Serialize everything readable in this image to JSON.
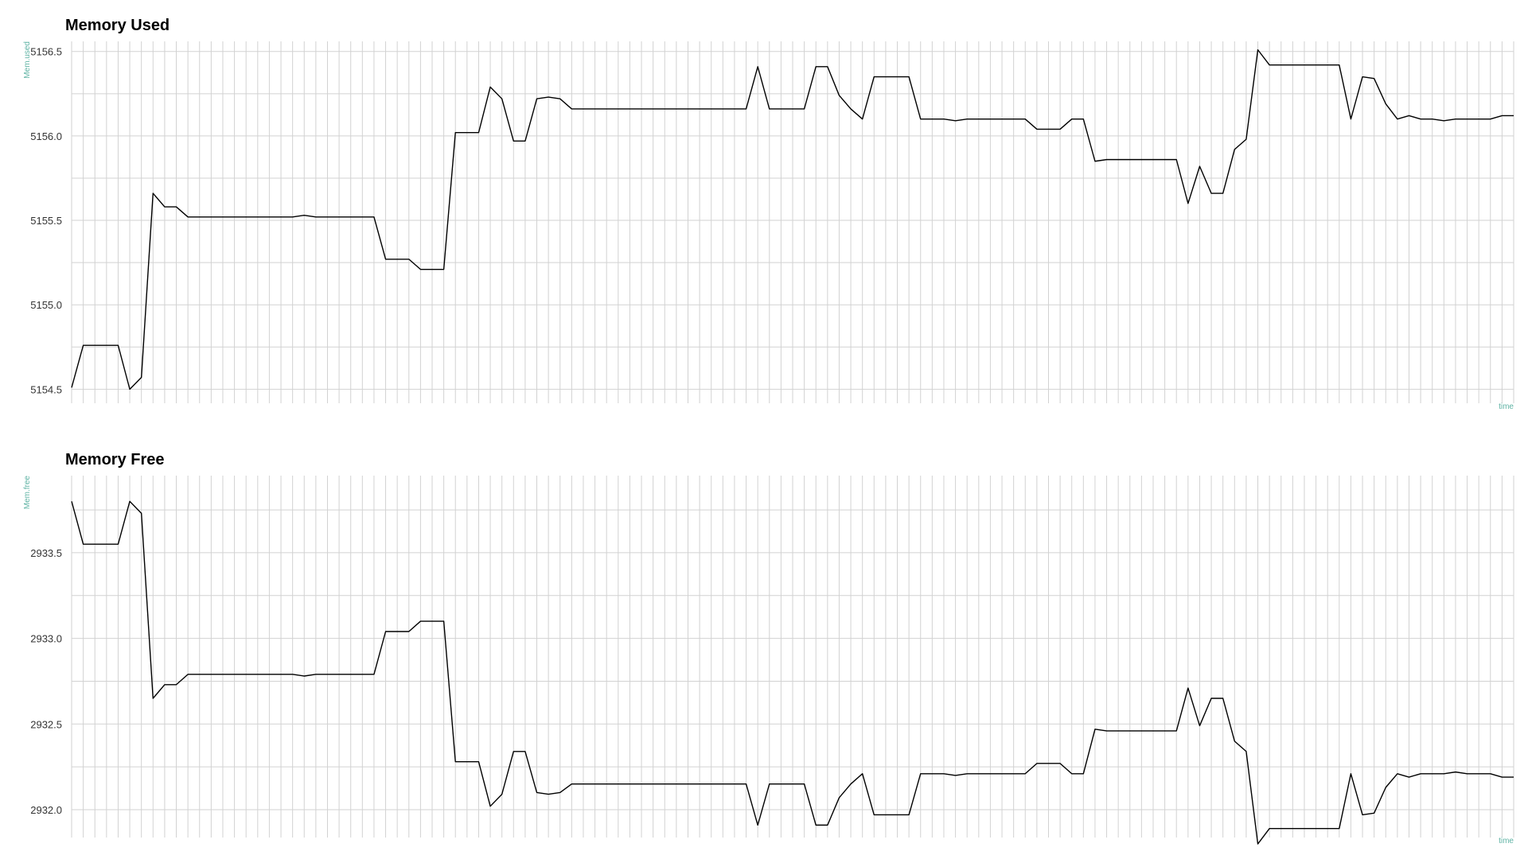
{
  "chart_data": [
    {
      "type": "line",
      "title": "Memory Used",
      "xlabel": "time",
      "ylabel": "Mem.used",
      "ylim": [
        5154.45,
        5156.56
      ],
      "y_ticks": [
        5154.5,
        5155.0,
        5155.5,
        5156.0,
        5156.5
      ],
      "y_tick_labels": [
        "5154.5",
        "5155.0",
        "5155.5",
        "5156.0",
        "5156.5"
      ],
      "grid": true,
      "series": [
        {
          "values": [
            5154.51,
            5154.76,
            5154.76,
            5154.76,
            5154.76,
            5154.5,
            5154.57,
            5155.66,
            5155.58,
            5155.58,
            5155.52,
            5155.52,
            5155.52,
            5155.52,
            5155.52,
            5155.52,
            5155.52,
            5155.52,
            5155.52,
            5155.52,
            5155.53,
            5155.52,
            5155.52,
            5155.52,
            5155.52,
            5155.52,
            5155.52,
            5155.27,
            5155.27,
            5155.27,
            5155.21,
            5155.21,
            5155.21,
            5156.02,
            5156.02,
            5156.02,
            5156.29,
            5156.22,
            5155.97,
            5155.97,
            5156.22,
            5156.23,
            5156.22,
            5156.16,
            5156.16,
            5156.16,
            5156.16,
            5156.16,
            5156.16,
            5156.16,
            5156.16,
            5156.16,
            5156.16,
            5156.16,
            5156.16,
            5156.16,
            5156.16,
            5156.16,
            5156.16,
            5156.41,
            5156.16,
            5156.16,
            5156.16,
            5156.16,
            5156.41,
            5156.41,
            5156.24,
            5156.16,
            5156.1,
            5156.35,
            5156.35,
            5156.35,
            5156.35,
            5156.1,
            5156.1,
            5156.1,
            5156.09,
            5156.1,
            5156.1,
            5156.1,
            5156.1,
            5156.1,
            5156.1,
            5156.04,
            5156.04,
            5156.04,
            5156.1,
            5156.1,
            5155.85,
            5155.86,
            5155.86,
            5155.86,
            5155.86,
            5155.86,
            5155.86,
            5155.86,
            5155.6,
            5155.82,
            5155.66,
            5155.66,
            5155.92,
            5155.98,
            5156.51,
            5156.42,
            5156.42,
            5156.42,
            5156.42,
            5156.42,
            5156.42,
            5156.42,
            5156.1,
            5156.35,
            5156.34,
            5156.19,
            5156.1,
            5156.12,
            5156.1,
            5156.1,
            5156.09,
            5156.1,
            5156.1,
            5156.1,
            5156.1,
            5156.12,
            5156.12
          ]
        }
      ]
    },
    {
      "type": "line",
      "title": "Memory Free",
      "xlabel": "time",
      "ylabel": "Mem.free",
      "ylim": [
        2931.87,
        2933.95
      ],
      "y_ticks": [
        2932.0,
        2932.5,
        2933.0,
        2933.5
      ],
      "y_tick_labels": [
        "2932.0",
        "2932.5",
        "2933.0",
        "2933.5"
      ],
      "grid": true,
      "series": [
        {
          "values": [
            2933.8,
            2933.55,
            2933.55,
            2933.55,
            2933.55,
            2933.8,
            2933.73,
            2932.65,
            2932.73,
            2932.73,
            2932.79,
            2932.79,
            2932.79,
            2932.79,
            2932.79,
            2932.79,
            2932.79,
            2932.79,
            2932.79,
            2932.79,
            2932.78,
            2932.79,
            2932.79,
            2932.79,
            2932.79,
            2932.79,
            2932.79,
            2933.04,
            2933.04,
            2933.04,
            2933.1,
            2933.1,
            2933.1,
            2932.28,
            2932.28,
            2932.28,
            2932.02,
            2932.09,
            2932.34,
            2932.34,
            2932.1,
            2932.09,
            2932.1,
            2932.15,
            2932.15,
            2932.15,
            2932.15,
            2932.15,
            2932.15,
            2932.15,
            2932.15,
            2932.15,
            2932.15,
            2932.15,
            2932.15,
            2932.15,
            2932.15,
            2932.15,
            2932.15,
            2931.91,
            2932.15,
            2932.15,
            2932.15,
            2932.15,
            2931.91,
            2931.91,
            2932.07,
            2932.15,
            2932.21,
            2931.97,
            2931.97,
            2931.97,
            2931.97,
            2932.21,
            2932.21,
            2932.21,
            2932.2,
            2932.21,
            2932.21,
            2932.21,
            2932.21,
            2932.21,
            2932.21,
            2932.27,
            2932.27,
            2932.27,
            2932.21,
            2932.21,
            2932.47,
            2932.46,
            2932.46,
            2932.46,
            2932.46,
            2932.46,
            2932.46,
            2932.46,
            2932.71,
            2932.49,
            2932.65,
            2932.65,
            2932.4,
            2932.34,
            2931.8,
            2931.89,
            2931.89,
            2931.89,
            2931.89,
            2931.89,
            2931.89,
            2931.89,
            2932.21,
            2931.97,
            2931.98,
            2932.13,
            2932.21,
            2932.19,
            2932.21,
            2932.21,
            2932.21,
            2932.22,
            2932.21,
            2932.21,
            2932.21,
            2932.19,
            2932.19
          ]
        }
      ]
    }
  ],
  "colors": {
    "line": "#000000",
    "grid": "#d2d2d2",
    "axis_label": "#5fb3a4"
  }
}
